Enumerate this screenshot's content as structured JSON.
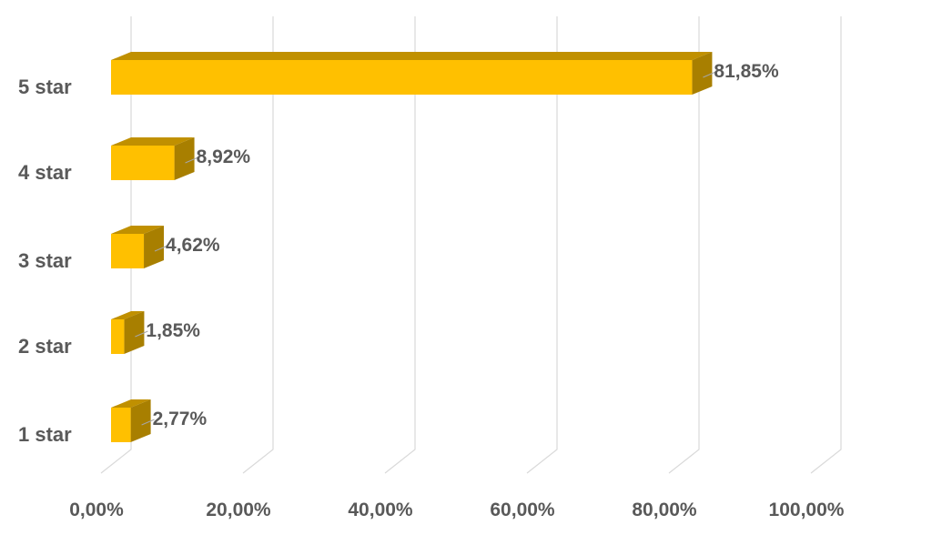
{
  "chart_data": {
    "type": "bar",
    "orientation": "horizontal",
    "style": "3d",
    "categories": [
      "5 star",
      "4 star",
      "3 star",
      "2 star",
      "1 star"
    ],
    "values": [
      81.85,
      8.92,
      4.62,
      1.85,
      2.77
    ],
    "data_labels": [
      "81,85%",
      "8,92%",
      "4,62%",
      "1,85%",
      "2,77%"
    ],
    "xlim": [
      0,
      100
    ],
    "x_ticks": [
      0,
      20,
      40,
      60,
      80,
      100
    ],
    "x_tick_labels": [
      "0,00%",
      "20,00%",
      "40,00%",
      "60,00%",
      "80,00%",
      "100,00%"
    ],
    "grid": "vertical",
    "legend": "none",
    "colors": {
      "bar_front": "#FFC000",
      "bar_top": "#C09000",
      "bar_side": "#A87F00",
      "gridline": "#D9D9D9",
      "text": "#595959"
    }
  }
}
